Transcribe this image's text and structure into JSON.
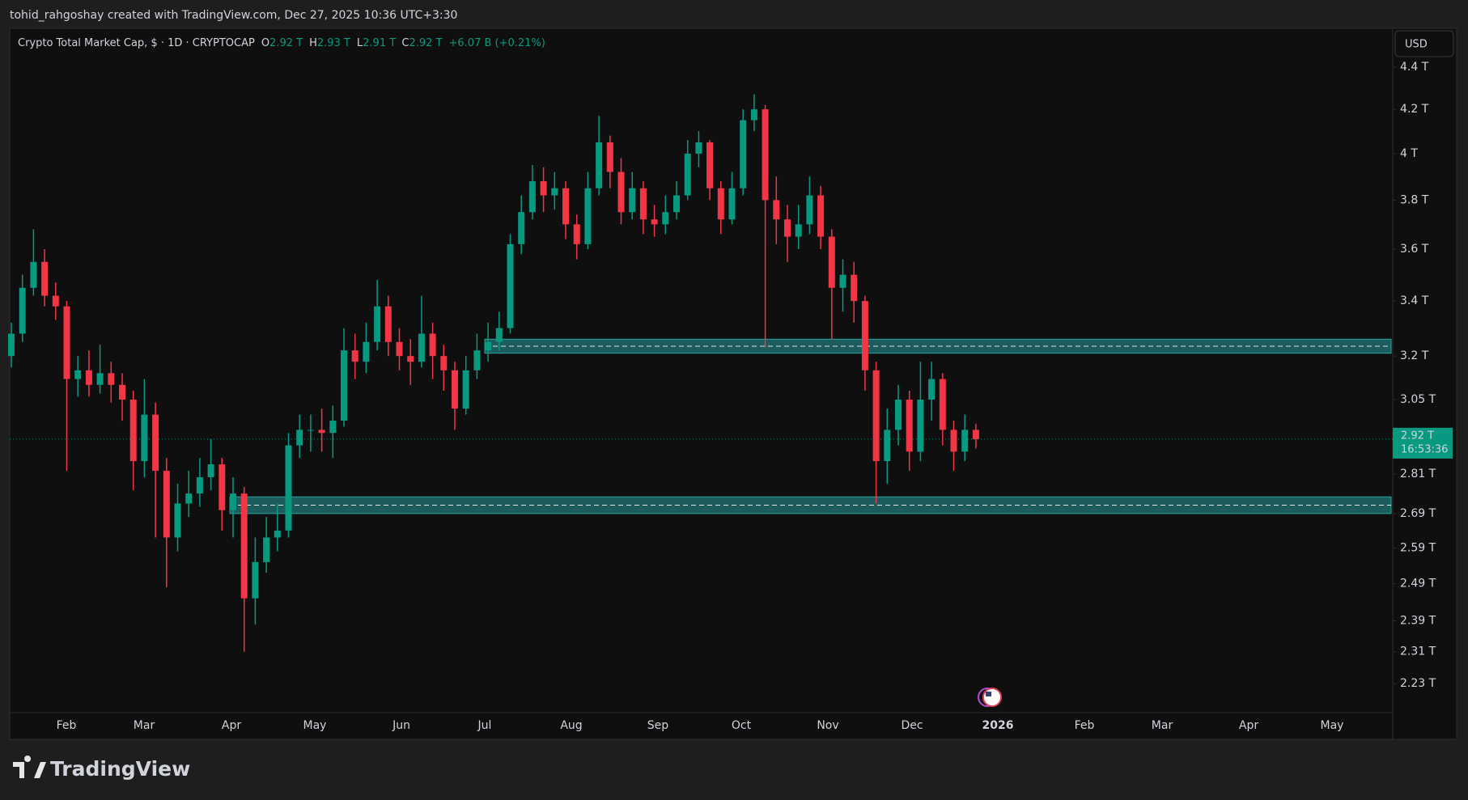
{
  "header": {
    "credit": "tohid_rahgoshay created with TradingView.com, Dec 27, 2025 10:36 UTC+3:30"
  },
  "chart_data": {
    "type": "candlestick",
    "legend": {
      "symbol": "Crypto Total Market Cap, $ · 1D · CRYPTOCAP",
      "items": [
        {
          "key": "O",
          "value": "2.92 T"
        },
        {
          "key": "H",
          "value": "2.93 T"
        },
        {
          "key": "L",
          "value": "2.91 T"
        },
        {
          "key": "C",
          "value": "2.92 T"
        }
      ],
      "change": "+6.07 B (+0.21%)"
    },
    "currency_button": "USD",
    "x_labels": [
      "Feb",
      "Mar",
      "Apr",
      "May",
      "Jun",
      "Jul",
      "Aug",
      "Sep",
      "Oct",
      "Nov",
      "Dec",
      "2026",
      "Feb",
      "Mar",
      "Apr",
      "May"
    ],
    "log_scale": true,
    "ylim": [
      2.16,
      4.58
    ],
    "yticks": [
      {
        "value": 4.4,
        "label": "4.4 T"
      },
      {
        "value": 4.2,
        "label": "4.2 T"
      },
      {
        "value": 4,
        "label": "4 T"
      },
      {
        "value": 3.8,
        "label": "3.8 T"
      },
      {
        "value": 3.6,
        "label": "3.6 T"
      },
      {
        "value": 3.4,
        "label": "3.4 T"
      },
      {
        "value": 3.2,
        "label": "3.2 T"
      },
      {
        "value": 3.05,
        "label": "3.05 T"
      },
      {
        "value": 2.81,
        "label": "2.81 T"
      },
      {
        "value": 2.69,
        "label": "2.69 T"
      },
      {
        "value": 2.59,
        "label": "2.59 T"
      },
      {
        "value": 2.49,
        "label": "2.49 T"
      },
      {
        "value": 2.39,
        "label": "2.39 T"
      },
      {
        "value": 2.31,
        "label": "2.31 T"
      },
      {
        "value": 2.23,
        "label": "2.23 T"
      }
    ],
    "up_color": "#089981",
    "down_color": "#f23645",
    "open": [
      3.2,
      3.28,
      3.45,
      3.55,
      3.42,
      3.38,
      3.12,
      3.15,
      3.1,
      3.14,
      3.1,
      3.05,
      2.85,
      3.0,
      2.82,
      2.62,
      2.72,
      2.75,
      2.8,
      2.84,
      2.7,
      2.75,
      2.45,
      2.55,
      2.62,
      2.64,
      2.9,
      2.95,
      2.95,
      2.94,
      2.98,
      3.22,
      3.18,
      3.25,
      3.38,
      3.25,
      3.2,
      3.18,
      3.28,
      3.2,
      3.15,
      3.02,
      3.15,
      3.22,
      3.25,
      3.3,
      3.62,
      3.75,
      3.88,
      3.82,
      3.85,
      3.7,
      3.62,
      3.85,
      4.05,
      3.92,
      3.75,
      3.85,
      3.72,
      3.7,
      3.75,
      3.82,
      4.0,
      4.05,
      3.85,
      3.72,
      3.85,
      4.15,
      4.2,
      3.8,
      3.72,
      3.65,
      3.7,
      3.82,
      3.65,
      3.45,
      3.5,
      3.4,
      3.15,
      2.85,
      2.95,
      3.05,
      2.88,
      3.05,
      3.12,
      2.95,
      2.88,
      2.95
    ],
    "high": [
      3.32,
      3.5,
      3.68,
      3.6,
      3.47,
      3.4,
      3.2,
      3.22,
      3.24,
      3.18,
      3.14,
      3.08,
      3.12,
      3.04,
      2.86,
      2.78,
      2.82,
      2.86,
      2.92,
      2.86,
      2.8,
      2.77,
      2.62,
      2.68,
      2.72,
      2.94,
      3.0,
      3.0,
      3.02,
      3.03,
      3.3,
      3.28,
      3.32,
      3.48,
      3.42,
      3.3,
      3.26,
      3.42,
      3.32,
      3.24,
      3.18,
      3.2,
      3.28,
      3.32,
      3.36,
      3.66,
      3.82,
      3.95,
      3.94,
      3.92,
      3.88,
      3.74,
      3.92,
      4.17,
      4.08,
      3.98,
      3.92,
      3.88,
      3.78,
      3.82,
      3.88,
      4.06,
      4.1,
      4.06,
      3.88,
      3.92,
      4.2,
      4.27,
      4.22,
      3.9,
      3.78,
      3.78,
      3.9,
      3.86,
      3.68,
      3.56,
      3.55,
      3.42,
      3.18,
      3.02,
      3.1,
      3.08,
      3.18,
      3.18,
      3.14,
      2.98,
      3.0,
      2.97
    ],
    "low": [
      3.16,
      3.25,
      3.42,
      3.38,
      3.33,
      2.82,
      3.06,
      3.06,
      3.07,
      3.04,
      2.98,
      2.76,
      2.8,
      2.62,
      2.48,
      2.58,
      2.68,
      2.71,
      2.76,
      2.64,
      2.62,
      2.31,
      2.38,
      2.52,
      2.58,
      2.62,
      2.86,
      2.88,
      2.88,
      2.86,
      2.96,
      3.12,
      3.14,
      3.22,
      3.2,
      3.15,
      3.1,
      3.16,
      3.12,
      3.08,
      2.95,
      3.0,
      3.12,
      3.18,
      3.22,
      3.28,
      3.58,
      3.72,
      3.75,
      3.76,
      3.64,
      3.56,
      3.6,
      3.82,
      3.85,
      3.7,
      3.72,
      3.66,
      3.65,
      3.66,
      3.72,
      3.8,
      3.94,
      3.8,
      3.66,
      3.7,
      3.82,
      4.1,
      3.23,
      3.62,
      3.55,
      3.6,
      3.66,
      3.6,
      3.26,
      3.36,
      3.32,
      3.08,
      2.72,
      2.78,
      2.9,
      2.82,
      2.85,
      2.98,
      2.9,
      2.82,
      2.85,
      2.89
    ],
    "close": [
      3.28,
      3.45,
      3.55,
      3.42,
      3.38,
      3.12,
      3.15,
      3.1,
      3.14,
      3.1,
      3.05,
      2.85,
      3.0,
      2.82,
      2.62,
      2.72,
      2.75,
      2.8,
      2.84,
      2.7,
      2.75,
      2.45,
      2.55,
      2.62,
      2.64,
      2.9,
      2.95,
      2.95,
      2.94,
      2.98,
      3.22,
      3.18,
      3.25,
      3.38,
      3.25,
      3.2,
      3.18,
      3.28,
      3.2,
      3.15,
      3.02,
      3.15,
      3.22,
      3.25,
      3.3,
      3.62,
      3.75,
      3.88,
      3.82,
      3.85,
      3.7,
      3.62,
      3.85,
      4.05,
      3.92,
      3.75,
      3.85,
      3.72,
      3.7,
      3.75,
      3.82,
      4.0,
      4.05,
      3.85,
      3.72,
      3.85,
      4.15,
      4.2,
      3.8,
      3.72,
      3.65,
      3.7,
      3.82,
      3.65,
      3.45,
      3.5,
      3.4,
      3.15,
      2.85,
      2.95,
      3.05,
      2.88,
      3.05,
      3.12,
      2.95,
      2.88,
      2.95,
      2.92
    ],
    "zones": [
      {
        "low": 3.21,
        "high": 3.26,
        "color": "#1c5c5c"
      },
      {
        "low": 2.69,
        "high": 2.74,
        "color": "#1c5c5c"
      }
    ],
    "last_price": {
      "value": 2.92,
      "label": "2.92 T",
      "countdown": "16:53:36"
    }
  },
  "footer": {
    "brand": "TradingView"
  }
}
